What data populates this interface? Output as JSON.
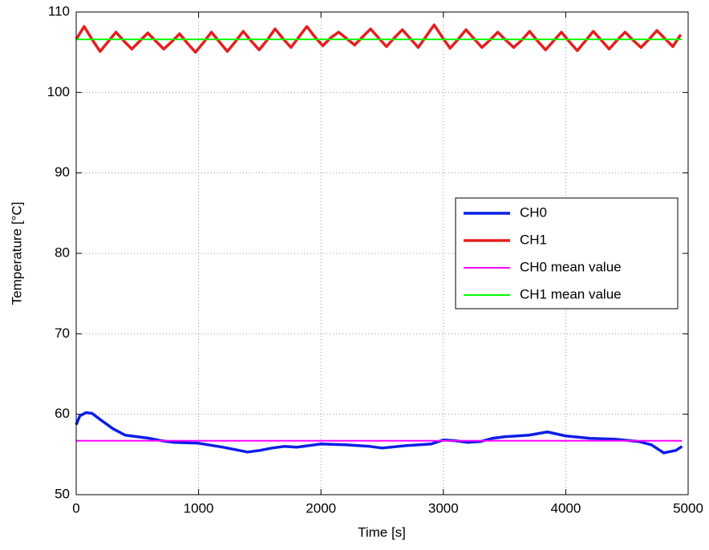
{
  "chart_data": {
    "type": "line",
    "xlabel": "Time [s]",
    "ylabel": "Temperature [°C]",
    "xlim": [
      0,
      5000
    ],
    "xticks": [
      0,
      1000,
      2000,
      3000,
      4000,
      5000
    ],
    "ylim": [
      50,
      110
    ],
    "yticks": [
      50,
      60,
      70,
      80,
      90,
      100,
      110
    ],
    "grid": true,
    "legend": "east",
    "series": [
      {
        "name": "CH0",
        "color": "#0a1ee6",
        "line_width": 3.5,
        "x": [
          0,
          30,
          80,
          130,
          200,
          300,
          400,
          500,
          600,
          700,
          800,
          1000,
          1200,
          1300,
          1400,
          1500,
          1600,
          1700,
          1800,
          1900,
          2000,
          2200,
          2400,
          2500,
          2700,
          2900,
          3000,
          3100,
          3200,
          3300,
          3400,
          3500,
          3700,
          3850,
          4000,
          4200,
          4400,
          4600,
          4700,
          4800,
          4900,
          4950
        ],
        "values": [
          58.7,
          59.8,
          60.2,
          60.1,
          59.3,
          58.2,
          57.4,
          57.2,
          57.0,
          56.7,
          56.5,
          56.4,
          55.9,
          55.6,
          55.3,
          55.5,
          55.8,
          56.0,
          55.9,
          56.1,
          56.3,
          56.2,
          56.0,
          55.8,
          56.1,
          56.3,
          56.8,
          56.7,
          56.5,
          56.6,
          57.0,
          57.2,
          57.4,
          57.8,
          57.3,
          57.0,
          56.9,
          56.6,
          56.2,
          55.2,
          55.5,
          56.0
        ]
      },
      {
        "name": "CH1",
        "color": "#e61e1e",
        "line_width": 3.5,
        "x": [
          0,
          65,
          130,
          195,
          260,
          325,
          390,
          455,
          520,
          585,
          650,
          715,
          780,
          845,
          910,
          975,
          1040,
          1105,
          1170,
          1235,
          1300,
          1365,
          1430,
          1495,
          1560,
          1625,
          1690,
          1755,
          1820,
          1885,
          1950,
          2015,
          2080,
          2145,
          2210,
          2275,
          2340,
          2405,
          2470,
          2535,
          2600,
          2665,
          2730,
          2795,
          2860,
          2925,
          2990,
          3055,
          3120,
          3185,
          3250,
          3315,
          3380,
          3445,
          3510,
          3575,
          3640,
          3705,
          3770,
          3835,
          3900,
          3965,
          4030,
          4095,
          4160,
          4225,
          4290,
          4355,
          4420,
          4485,
          4550,
          4615,
          4680,
          4745,
          4810,
          4875,
          4940
        ],
        "values": [
          106.6,
          108.2,
          106.6,
          105.1,
          106.3,
          107.5,
          106.4,
          105.4,
          106.4,
          107.4,
          106.4,
          105.4,
          106.3,
          107.3,
          106.1,
          105.0,
          106.2,
          107.5,
          106.3,
          105.1,
          106.3,
          107.6,
          106.4,
          105.3,
          106.5,
          107.9,
          106.7,
          105.6,
          106.9,
          108.2,
          106.9,
          105.8,
          106.8,
          107.5,
          106.7,
          105.9,
          106.9,
          107.9,
          106.8,
          105.7,
          106.8,
          107.8,
          106.7,
          105.6,
          107.0,
          108.4,
          106.9,
          105.5,
          106.6,
          107.8,
          106.7,
          105.6,
          106.5,
          107.5,
          106.5,
          105.6,
          106.5,
          107.6,
          106.4,
          105.3,
          106.4,
          107.5,
          106.3,
          105.2,
          106.4,
          107.6,
          106.5,
          105.4,
          106.5,
          107.5,
          106.5,
          105.6,
          106.6,
          107.7,
          106.7,
          105.7,
          107.2
        ]
      },
      {
        "name": "CH0 mean value",
        "color": "#ff00ff",
        "line_width": 2,
        "x": [
          0,
          4950
        ],
        "values": [
          56.7,
          56.7
        ]
      },
      {
        "name": "CH1 mean value",
        "color": "#00ff00",
        "line_width": 2,
        "x": [
          0,
          4950
        ],
        "values": [
          106.6,
          106.6
        ]
      }
    ]
  }
}
